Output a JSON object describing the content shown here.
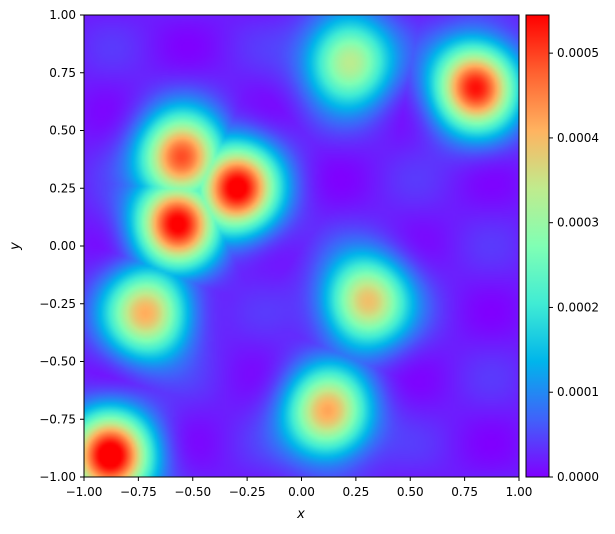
{
  "chart_data": {
    "type": "heatmap",
    "title": "",
    "xlabel": "x",
    "ylabel": "y",
    "xlim": [
      -1.0,
      1.0
    ],
    "ylim": [
      -1.0,
      1.0
    ],
    "x_ticks": [
      "−1.00",
      "−0.75",
      "−0.50",
      "−0.25",
      "0.00",
      "0.25",
      "0.50",
      "0.75",
      "1.00"
    ],
    "y_ticks": [
      "−1.00",
      "−0.75",
      "−0.50",
      "−0.25",
      "0.00",
      "0.25",
      "0.50",
      "0.75",
      "1.00"
    ],
    "colormap": "rainbow",
    "colorbar": {
      "min": 0.0,
      "max": 0.000545,
      "ticks": [
        "0.0000",
        "0.0001",
        "0.0002",
        "0.0003",
        "0.0004",
        "0.0005"
      ]
    },
    "grid": false,
    "hotspots": [
      {
        "x": -0.57,
        "y": 0.1,
        "value": 0.00053
      },
      {
        "x": -0.3,
        "y": 0.25,
        "value": 0.00054
      },
      {
        "x": -0.55,
        "y": 0.38,
        "value": 0.00048
      },
      {
        "x": -0.88,
        "y": -0.91,
        "value": 0.00055
      },
      {
        "x": 0.8,
        "y": 0.69,
        "value": 0.00051
      },
      {
        "x": 0.12,
        "y": -0.72,
        "value": 0.0004
      },
      {
        "x": 0.3,
        "y": -0.24,
        "value": 0.00038
      },
      {
        "x": -0.71,
        "y": -0.29,
        "value": 0.00039
      },
      {
        "x": 0.22,
        "y": 0.8,
        "value": 0.00033
      }
    ]
  }
}
